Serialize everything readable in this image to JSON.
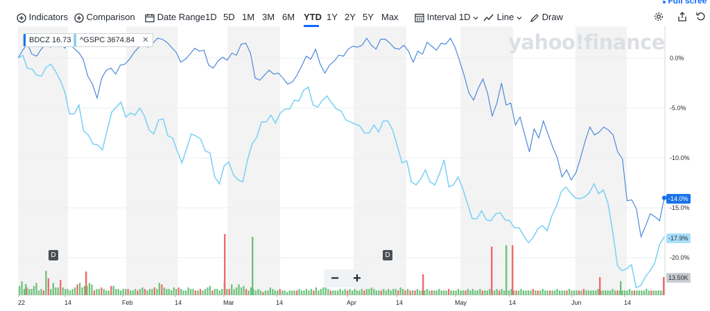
{
  "toolbar": {
    "indicators": "Indicators",
    "comparison": "Comparison",
    "date_range": "Date Range",
    "ranges": [
      "1D",
      "5D",
      "1M",
      "3M",
      "6M",
      "YTD",
      "1Y",
      "2Y",
      "5Y",
      "Max"
    ],
    "active_range": "YTD",
    "interval": "Interval",
    "interval_value": "1D",
    "line": "Line",
    "draw": "Draw",
    "full_screen": "Full scree"
  },
  "legend": {
    "primary": {
      "symbol": "BDCZ",
      "value": "16.73",
      "color": "#1a73e8"
    },
    "comparison": {
      "symbol": "^GSPC",
      "value": "3674.84",
      "color": "#7ed2f5"
    }
  },
  "watermark": "yahoo!finance",
  "badges": {
    "bdcz": "-14.0%",
    "gspc": "-17.9%",
    "volume": "13.50K"
  },
  "markers": [
    "D",
    "D"
  ],
  "zoom": {
    "minus": "−",
    "plus": "+"
  },
  "chart_data": {
    "type": "line",
    "y_unit": "%",
    "y_ticks": [
      "0.0%",
      "-5.0%",
      "-10.0%",
      "-15.0%",
      "-20.0%"
    ],
    "ylim": [
      -23.5,
      2.5
    ],
    "x_tick_labels": [
      "22",
      "14",
      "Feb",
      "14",
      "Mar",
      "14",
      "Apr",
      "14",
      "May",
      "14",
      "Jun",
      "14"
    ],
    "series": [
      {
        "name": "BDCZ",
        "color": "#3d7fd9",
        "values": [
          0.0,
          0.8,
          1.4,
          0.4,
          0.2,
          0.9,
          1.4,
          1.1,
          1.5,
          1.9,
          1.0,
          1.5,
          1.0,
          0.6,
          -0.1,
          -1.8,
          -2.6,
          -4.0,
          -2.0,
          -1.2,
          -1.0,
          -1.6,
          -0.7,
          -0.6,
          -0.1,
          0.6,
          1.1,
          1.4,
          1.1,
          1.5,
          2.0,
          1.9,
          1.6,
          1.1,
          0.6,
          -0.4,
          -0.1,
          0.4,
          1.0,
          0.7,
          0.8,
          -0.7,
          -1.0,
          -0.3,
          0.1,
          -0.2,
          0.5,
          0.3,
          1.4,
          1.5,
          0.5,
          -2.0,
          -2.2,
          -1.7,
          -1.2,
          -1.6,
          -1.5,
          -2.0,
          -2.6,
          -2.4,
          -1.7,
          -0.8,
          0.2,
          -0.1,
          0.9,
          -0.6,
          -1.5,
          -0.7,
          -0.3,
          0.3,
          0.2,
          0.9,
          1.2,
          1.1,
          1.3,
          2.0,
          1.3,
          0.9,
          1.9,
          1.9,
          1.5,
          1.0,
          0.9,
          1.3,
          0.7,
          -0.4,
          0.7,
          0.4,
          1.6,
          1.2,
          0.8,
          1.5,
          1.4,
          2.0,
          1.1,
          -0.3,
          -1.8,
          -3.5,
          -4.2,
          -3.0,
          -2.1,
          -3.5,
          -5.8,
          -4.5,
          -2.5,
          -4.7,
          -4.5,
          -6.7,
          -5.9,
          -7.7,
          -9.4,
          -7.1,
          -8.0,
          -6.3,
          -7.6,
          -8.9,
          -10.0,
          -11.9,
          -11.2,
          -12.2,
          -11.5,
          -10.0,
          -8.3,
          -6.9,
          -7.7,
          -7.4,
          -6.9,
          -7.2,
          -7.7,
          -9.4,
          -10.1,
          -14.3,
          -14.2,
          -15.1,
          -17.9,
          -16.8,
          -15.6,
          -15.9,
          -16.3,
          -14.0
        ]
      },
      {
        "name": "^GSPC",
        "color": "#7ed2f5",
        "values": [
          0.0,
          0.3,
          -1.0,
          -1.1,
          -1.7,
          -1.8,
          -0.9,
          -0.6,
          -1.3,
          -2.2,
          -3.4,
          -5.6,
          -5.6,
          -4.7,
          -7.3,
          -7.7,
          -8.6,
          -8.7,
          -9.2,
          -7.3,
          -5.4,
          -4.9,
          -4.4,
          -5.9,
          -5.5,
          -5.7,
          -5.0,
          -5.8,
          -7.2,
          -7.6,
          -6.2,
          -6.1,
          -7.8,
          -8.0,
          -9.3,
          -10.5,
          -9.1,
          -7.6,
          -7.8,
          -8.1,
          -9.3,
          -9.5,
          -11.9,
          -12.6,
          -10.8,
          -10.4,
          -11.7,
          -12.2,
          -12.4,
          -10.2,
          -8.6,
          -7.9,
          -6.4,
          -6.4,
          -5.7,
          -6.5,
          -5.5,
          -5.1,
          -5.1,
          -4.2,
          -4.3,
          -3.2,
          -2.9,
          -4.7,
          -4.9,
          -4.2,
          -3.8,
          -4.5,
          -5.1,
          -5.3,
          -6.2,
          -6.4,
          -6.6,
          -6.8,
          -7.5,
          -7.5,
          -6.7,
          -7.4,
          -6.3,
          -6.3,
          -7.2,
          -8.8,
          -10.5,
          -10.3,
          -12.4,
          -12.7,
          -12.1,
          -11.2,
          -12.4,
          -12.7,
          -11.6,
          -10.2,
          -12.9,
          -12.7,
          -11.9,
          -13.1,
          -14.6,
          -16.1,
          -16.1,
          -15.3,
          -16.2,
          -16.3,
          -15.6,
          -15.5,
          -16.2,
          -16.3,
          -17.0,
          -17.0,
          -17.8,
          -18.5,
          -18.0,
          -17.1,
          -16.8,
          -17.3,
          -15.8,
          -14.8,
          -13.4,
          -12.9,
          -13.5,
          -14.0,
          -14.1,
          -13.9,
          -13.5,
          -12.6,
          -13.6,
          -13.2,
          -14.6,
          -17.4,
          -20.8,
          -21.3,
          -21.1,
          -20.7,
          -23.0,
          -22.8,
          -21.9,
          -21.3,
          -20.5,
          -18.7,
          -17.9
        ]
      },
      {
        "name": "Volume",
        "type": "bar",
        "values": [
          0.6,
          0.9,
          0.4,
          0.5,
          0.4,
          0.4,
          0.6,
          0.8,
          0.3,
          0.4,
          0.3,
          1.6,
          1.1,
          0.4,
          0.8,
          0.5,
          0.5,
          1.0,
          0.5,
          0.4,
          0.4,
          0.3,
          0.4,
          0.5,
          0.7,
          0.8,
          0.5,
          0.6,
          0.6,
          0.8,
          0.7,
          0.3,
          0.4,
          0.4,
          0.5,
          0.4,
          0.3,
          0.3,
          0.6,
          0.6,
          0.4,
          0.4,
          0.3,
          0.4,
          0.4,
          0.4,
          0.3,
          0.3,
          0.4,
          0.3,
          0.4,
          0.5,
          0.4,
          0.3,
          0.4,
          0.4,
          0.5,
          0.4,
          0.8,
          0.7,
          0.5,
          0.4,
          0.4,
          0.3,
          0.5,
          0.4,
          0.5,
          0.4,
          0.3,
          0.3,
          0.5,
          0.4,
          0.4,
          0.3,
          0.3,
          0.4,
          0.3,
          0.4,
          0.5,
          0.6,
          0.3,
          0.4,
          0.4,
          0.3,
          0.4,
          0.9,
          0.4,
          0.4,
          0.7,
          0.4,
          0.5,
          0.7,
          0.5,
          0.6,
          0.4,
          0.3,
          0.5,
          0.4,
          0.3,
          0.4,
          0.3,
          0.2,
          0.3,
          0.3,
          0.5,
          0.4,
          0.3,
          0.3,
          0.4,
          0.3,
          0.3,
          0.2,
          0.3,
          0.3,
          0.3,
          0.3,
          0.4,
          0.3,
          0.3,
          0.4,
          0.3,
          0.4,
          0.3,
          0.5,
          0.3,
          0.4,
          0.5,
          0.5,
          0.4,
          0.3,
          0.3,
          0.3,
          0.3,
          0.4,
          0.3,
          0.4,
          0.3,
          0.4,
          0.3,
          0.4,
          0.3,
          0.3,
          0.4,
          0.3,
          0.4,
          0.4,
          0.5,
          0.4,
          0.3,
          0.3,
          0.3,
          0.4,
          0.3,
          0.4,
          0.3,
          0.4,
          0.4,
          0.3,
          0.5,
          0.4,
          0.3,
          0.4,
          0.3,
          0.3,
          0.3,
          0.4,
          0.3,
          0.3,
          0.3,
          0.4,
          0.3,
          0.3,
          0.3,
          0.3,
          0.4,
          0.3,
          0.3,
          0.3,
          0.4,
          0.3,
          0.3,
          0.3,
          0.4,
          0.3,
          0.3,
          0.3,
          0.4,
          0.3,
          0.4,
          0.3,
          0.3,
          0.4,
          0.3,
          0.3,
          0.3,
          0.4,
          0.3,
          0.3,
          0.4,
          0.3,
          0.4,
          0.3,
          0.3,
          0.3,
          0.4,
          0.3,
          0.3,
          0.3,
          0.4,
          0.3,
          0.3,
          0.3,
          0.3,
          0.4,
          0.3,
          0.3,
          0.3,
          0.4,
          0.3,
          0.3,
          0.3,
          0.3,
          0.3,
          0.4,
          0.3,
          0.3,
          0.3,
          0.3,
          0.4,
          0.3,
          0.3,
          0.3,
          0.3,
          0.3,
          0.4,
          0.3,
          0.3,
          0.3,
          0.3,
          0.3,
          0.4,
          0.3,
          0.3,
          0.3,
          0.3,
          0.3,
          0.4,
          0.3,
          0.3,
          0.3,
          0.3,
          0.3,
          0.3,
          0.4,
          0.3,
          0.3,
          0.3,
          0.3,
          0.3,
          0.3,
          0.4,
          0.3,
          0.3,
          0.3,
          0.3,
          0.3,
          0.3,
          0.3
        ]
      }
    ]
  }
}
